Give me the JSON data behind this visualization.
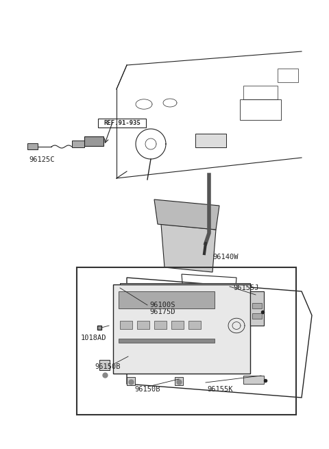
{
  "bg_color": "#ffffff",
  "fig_width": 4.8,
  "fig_height": 6.55,
  "dpi": 100,
  "labels": {
    "ref_label": "REF.91-935",
    "part_96125C": "96125C",
    "part_96140W": "96140W",
    "part_96155J": "96155J",
    "part_96100S": "96100S",
    "part_96175D": "96175D",
    "part_1018AD": "1018AD",
    "part_96150B_1": "96150B",
    "part_96150B_2": "96150B",
    "part_96155K": "96155K"
  },
  "line_color": "#222222",
  "box_color": "#444444",
  "dash_color": "#333333",
  "underline_ref": true
}
